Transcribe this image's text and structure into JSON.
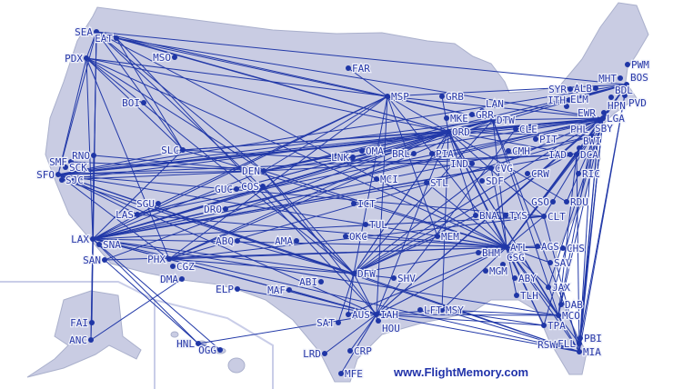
{
  "map": {
    "colors": {
      "land": "#c9cce3",
      "route": "#2239a8",
      "airport": "#1f36a6",
      "label": "#2a3aa8"
    },
    "airports": [
      "SEA",
      "EAT",
      "PDX",
      "MSO",
      "BOI",
      "SLC",
      "RNO",
      "SMF",
      "SCK",
      "SFO",
      "SJC",
      "DEN",
      "COS",
      "GUC",
      "DRO",
      "SGU",
      "LAS",
      "LAX",
      "SNA",
      "SAN",
      "PHX",
      "CGZ",
      "DMA",
      "ABQ",
      "AMA",
      "ELP",
      "MAF",
      "ABI",
      "LRD",
      "SAT",
      "AUS",
      "IAH",
      "HOU",
      "CRP",
      "MFE",
      "DFW",
      "SHV",
      "LFT",
      "MSY",
      "MEM",
      "BHM",
      "ATL",
      "MGM",
      "CSG",
      "ABY",
      "TLH",
      "AGS",
      "CHS",
      "SAV",
      "JAX",
      "DAB",
      "MCO",
      "TPA",
      "RSW",
      "PBI",
      "FLL",
      "MIA",
      "ICT",
      "TUL",
      "OKC",
      "MCI",
      "STL",
      "OMA",
      "LNK",
      "BRL",
      "PIA",
      "MSP",
      "FAR",
      "GRB",
      "MKE",
      "ORD",
      "GRR",
      "LAN",
      "DTW",
      "CLE",
      "PIT",
      "CMH",
      "IND",
      "CVG",
      "SDF",
      "CRW",
      "BNA",
      "TYS",
      "CLT",
      "GSO",
      "RDU",
      "RIC",
      "IAD",
      "DCA",
      "BWI",
      "SBY",
      "PHL",
      "EWR",
      "LGA",
      "HPN",
      "SYR",
      "ITH",
      "ELM",
      "ALB",
      "BDL",
      "PVD",
      "BOS",
      "MHT",
      "PWM",
      "FAI",
      "ANC",
      "HNL",
      "OGG"
    ],
    "routes": [
      [
        "SEA",
        "PDX"
      ],
      [
        "SEA",
        "LAX"
      ],
      [
        "SEA",
        "SFO"
      ],
      [
        "SEA",
        "ORD"
      ],
      [
        "SEA",
        "BOS"
      ],
      [
        "SEA",
        "MSP"
      ],
      [
        "SEA",
        "DEN"
      ],
      [
        "SEA",
        "FAI"
      ],
      [
        "SEA",
        "ANC"
      ],
      [
        "SEA",
        "SLC"
      ],
      [
        "SEA",
        "DFW"
      ],
      [
        "SEA",
        "ATL"
      ],
      [
        "EAT",
        "LGA"
      ],
      [
        "EAT",
        "ORD"
      ],
      [
        "EAT",
        "DTW"
      ],
      [
        "EAT",
        "SLC"
      ],
      [
        "EAT",
        "IAH"
      ],
      [
        "PDX",
        "SFO"
      ],
      [
        "PDX",
        "ORD"
      ],
      [
        "PDX",
        "DEN"
      ],
      [
        "PDX",
        "SLC"
      ],
      [
        "PDX",
        "PHX"
      ],
      [
        "PDX",
        "DFW"
      ],
      [
        "PDX",
        "MSP"
      ],
      [
        "PDX",
        "ATL"
      ],
      [
        "PDX",
        "LAX"
      ],
      [
        "SFO",
        "ORD"
      ],
      [
        "SFO",
        "DEN"
      ],
      [
        "SFO",
        "JFK"
      ],
      [
        "SFO",
        "LGA"
      ],
      [
        "SFO",
        "IAD"
      ],
      [
        "SFO",
        "DFW"
      ],
      [
        "SFO",
        "ATL"
      ],
      [
        "SFO",
        "IAH"
      ],
      [
        "SFO",
        "BOS"
      ],
      [
        "SFO",
        "PHX"
      ],
      [
        "SFO",
        "LAS"
      ],
      [
        "SFO",
        "SLC"
      ],
      [
        "SFO",
        "CLT"
      ],
      [
        "SFO",
        "MIA"
      ],
      [
        "SFO",
        "DTW"
      ],
      [
        "SJC",
        "DEN"
      ],
      [
        "SJC",
        "ORD"
      ],
      [
        "SJC",
        "DFW"
      ],
      [
        "SMF",
        "DEN"
      ],
      [
        "RNO",
        "LAX"
      ],
      [
        "RNO",
        "DEN"
      ],
      [
        "LAX",
        "ORD"
      ],
      [
        "LAX",
        "JFK"
      ],
      [
        "LAX",
        "LGA"
      ],
      [
        "LAX",
        "ATL"
      ],
      [
        "LAX",
        "DFW"
      ],
      [
        "LAX",
        "IAH"
      ],
      [
        "LAX",
        "DEN"
      ],
      [
        "LAX",
        "BOS"
      ],
      [
        "LAX",
        "MIA"
      ],
      [
        "LAX",
        "PHL"
      ],
      [
        "LAX",
        "DTW"
      ],
      [
        "LAX",
        "MSP"
      ],
      [
        "LAX",
        "CLT"
      ],
      [
        "LAX",
        "HNL"
      ],
      [
        "LAX",
        "OGG"
      ],
      [
        "LAX",
        "ANC"
      ],
      [
        "LAX",
        "IAD"
      ],
      [
        "LAX",
        "LAS"
      ],
      [
        "LAX",
        "PHX"
      ],
      [
        "LAX",
        "SLC"
      ],
      [
        "LAX",
        "MCO"
      ],
      [
        "LAX",
        "STL"
      ],
      [
        "LAX",
        "CVG"
      ],
      [
        "SAN",
        "HNL"
      ],
      [
        "SAN",
        "ORD"
      ],
      [
        "SAN",
        "ATL"
      ],
      [
        "PHX",
        "ORD"
      ],
      [
        "PHX",
        "ATL"
      ],
      [
        "PHX",
        "PHL"
      ],
      [
        "PHX",
        "CLT"
      ],
      [
        "PHX",
        "DFW"
      ],
      [
        "PHX",
        "IAH"
      ],
      [
        "PHX",
        "MSP"
      ],
      [
        "PHX",
        "DTW"
      ],
      [
        "DMA",
        "ANC"
      ],
      [
        "LAS",
        "ORD"
      ],
      [
        "LAS",
        "ATL"
      ],
      [
        "LAS",
        "DTW"
      ],
      [
        "LAS",
        "MSP"
      ],
      [
        "LAS",
        "JFK"
      ],
      [
        "DEN",
        "ORD"
      ],
      [
        "DEN",
        "ATL"
      ],
      [
        "DEN",
        "LGA"
      ],
      [
        "DEN",
        "IAD"
      ],
      [
        "DEN",
        "DFW"
      ],
      [
        "DEN",
        "IAH"
      ],
      [
        "DEN",
        "MSP"
      ],
      [
        "DEN",
        "BOS"
      ],
      [
        "DEN",
        "DTW"
      ],
      [
        "COS",
        "DFW"
      ],
      [
        "SLC",
        "ATL"
      ],
      [
        "SLC",
        "ORD"
      ],
      [
        "SLC",
        "JFK"
      ],
      [
        "SLC",
        "CVG"
      ],
      [
        "ABQ",
        "DFW"
      ],
      [
        "ELP",
        "IAH"
      ],
      [
        "MAF",
        "IAH"
      ],
      [
        "MSP",
        "ORD"
      ],
      [
        "MSP",
        "DTW"
      ],
      [
        "MSP",
        "ATL"
      ],
      [
        "MSP",
        "LGA"
      ],
      [
        "MSP",
        "BOS"
      ],
      [
        "MSP",
        "DFW"
      ],
      [
        "MSP",
        "IAH"
      ],
      [
        "MSP",
        "MEM"
      ],
      [
        "FAR",
        "MSP"
      ],
      [
        "GRB",
        "ORD"
      ],
      [
        "ORD",
        "LGA"
      ],
      [
        "ORD",
        "EWR"
      ],
      [
        "ORD",
        "BOS"
      ],
      [
        "ORD",
        "DCA"
      ],
      [
        "ORD",
        "ATL"
      ],
      [
        "ORD",
        "DFW"
      ],
      [
        "ORD",
        "IAH"
      ],
      [
        "ORD",
        "MIA"
      ],
      [
        "ORD",
        "MCO"
      ],
      [
        "ORD",
        "TPA"
      ],
      [
        "ORD",
        "CLT"
      ],
      [
        "ORD",
        "PHL"
      ],
      [
        "ORD",
        "RDU"
      ],
      [
        "ORD",
        "MSY"
      ],
      [
        "ORD",
        "BNA"
      ],
      [
        "DTW",
        "LGA"
      ],
      [
        "DTW",
        "BOS"
      ],
      [
        "DTW",
        "ATL"
      ],
      [
        "DTW",
        "MCO"
      ],
      [
        "DTW",
        "FLL"
      ],
      [
        "DTW",
        "DFW"
      ],
      [
        "CLE",
        "IAH"
      ],
      [
        "CVG",
        "ATL"
      ],
      [
        "CVG",
        "LGA"
      ],
      [
        "CVG",
        "DFW"
      ],
      [
        "DFW",
        "ATL"
      ],
      [
        "DFW",
        "LGA"
      ],
      [
        "DFW",
        "MIA"
      ],
      [
        "DFW",
        "IAD"
      ],
      [
        "DFW",
        "ORD"
      ],
      [
        "DFW",
        "SAT"
      ],
      [
        "DFW",
        "AUS"
      ],
      [
        "DFW",
        "HOU"
      ],
      [
        "DFW",
        "SHV"
      ],
      [
        "DFW",
        "MEM"
      ],
      [
        "DFW",
        "BNA"
      ],
      [
        "IAH",
        "ATL"
      ],
      [
        "IAH",
        "LGA"
      ],
      [
        "IAH",
        "EWR"
      ],
      [
        "IAH",
        "MIA"
      ],
      [
        "IAH",
        "MCO"
      ],
      [
        "IAH",
        "CRP"
      ],
      [
        "IAH",
        "MFE"
      ],
      [
        "IAH",
        "LRD"
      ],
      [
        "IAH",
        "HNL"
      ],
      [
        "IAH",
        "MSY"
      ],
      [
        "IAH",
        "TPA"
      ],
      [
        "ATL",
        "LGA"
      ],
      [
        "ATL",
        "BOS"
      ],
      [
        "ATL",
        "MIA"
      ],
      [
        "ATL",
        "MCO"
      ],
      [
        "ATL",
        "TPA"
      ],
      [
        "ATL",
        "FLL"
      ],
      [
        "ATL",
        "DCA"
      ],
      [
        "ATL",
        "PHL"
      ],
      [
        "ATL",
        "CLT"
      ],
      [
        "ATL",
        "JAX"
      ],
      [
        "ATL",
        "SAV"
      ],
      [
        "ATL",
        "MSY"
      ],
      [
        "ATL",
        "BHM"
      ],
      [
        "ATL",
        "AGS"
      ],
      [
        "ATL",
        "CHS"
      ],
      [
        "ATL",
        "TLH"
      ],
      [
        "ATL",
        "MEM"
      ],
      [
        "ATL",
        "STL"
      ],
      [
        "ATL",
        "MCI"
      ],
      [
        "ATL",
        "OKC"
      ],
      [
        "ATL",
        "AUS"
      ],
      [
        "LGA",
        "MIA"
      ],
      [
        "LGA",
        "FLL"
      ],
      [
        "LGA",
        "PBI"
      ],
      [
        "LGA",
        "MCO"
      ],
      [
        "LGA",
        "TPA"
      ],
      [
        "LGA",
        "CLT"
      ],
      [
        "LGA",
        "RDU"
      ],
      [
        "LGA",
        "BOS"
      ],
      [
        "LGA",
        "DCA"
      ],
      [
        "LGA",
        "JAX"
      ],
      [
        "EWR",
        "MIA"
      ],
      [
        "EWR",
        "FLL"
      ],
      [
        "BOS",
        "MIA"
      ],
      [
        "BOS",
        "FLL"
      ],
      [
        "BOS",
        "DCA"
      ],
      [
        "BOS",
        "PHL"
      ],
      [
        "PHL",
        "MCO"
      ],
      [
        "PHL",
        "MIA"
      ],
      [
        "DCA",
        "MIA"
      ],
      [
        "DCA",
        "MCO"
      ],
      [
        "CLT",
        "MIA"
      ],
      [
        "MSY",
        "MIA"
      ],
      [
        "MSY",
        "MCO"
      ],
      [
        "MSY",
        "TPA"
      ],
      [
        "HNL",
        "OGG"
      ]
    ]
  },
  "footer": {
    "text": "www.FlightMemory.com"
  }
}
